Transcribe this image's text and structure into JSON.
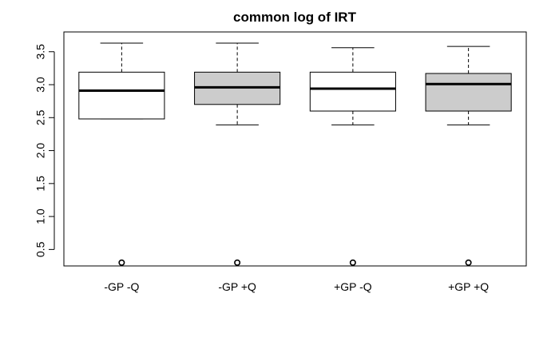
{
  "chart_data": {
    "type": "boxplot",
    "title": "common log of IRT",
    "xlabel": "",
    "ylabel": "",
    "categories": [
      "-GP -Q",
      "-GP +Q",
      "+GP -Q",
      "+GP +Q"
    ],
    "y_ticks": [
      "0.5",
      "1.0",
      "1.5",
      "2.0",
      "2.5",
      "3.0",
      "3.5"
    ],
    "ylim": [
      0.25,
      3.8
    ],
    "grid": false,
    "boxes": [
      {
        "category": "-GP -Q",
        "whisker_low": 2.48,
        "q1": 2.48,
        "median": 2.91,
        "q3": 3.19,
        "whisker_high": 3.63,
        "outliers": [
          0.3
        ],
        "fill": "#ffffff"
      },
      {
        "category": "-GP +Q",
        "whisker_low": 2.39,
        "q1": 2.7,
        "median": 2.96,
        "q3": 3.19,
        "whisker_high": 3.63,
        "outliers": [
          0.3
        ],
        "fill": "#cccccc"
      },
      {
        "category": "+GP -Q",
        "whisker_low": 2.39,
        "q1": 2.6,
        "median": 2.94,
        "q3": 3.19,
        "whisker_high": 3.56,
        "outliers": [
          0.3
        ],
        "fill": "#ffffff"
      },
      {
        "category": "+GP +Q",
        "whisker_low": 2.39,
        "q1": 2.6,
        "median": 3.01,
        "q3": 3.17,
        "whisker_high": 3.58,
        "outliers": [
          0.3
        ],
        "fill": "#cccccc"
      }
    ]
  }
}
